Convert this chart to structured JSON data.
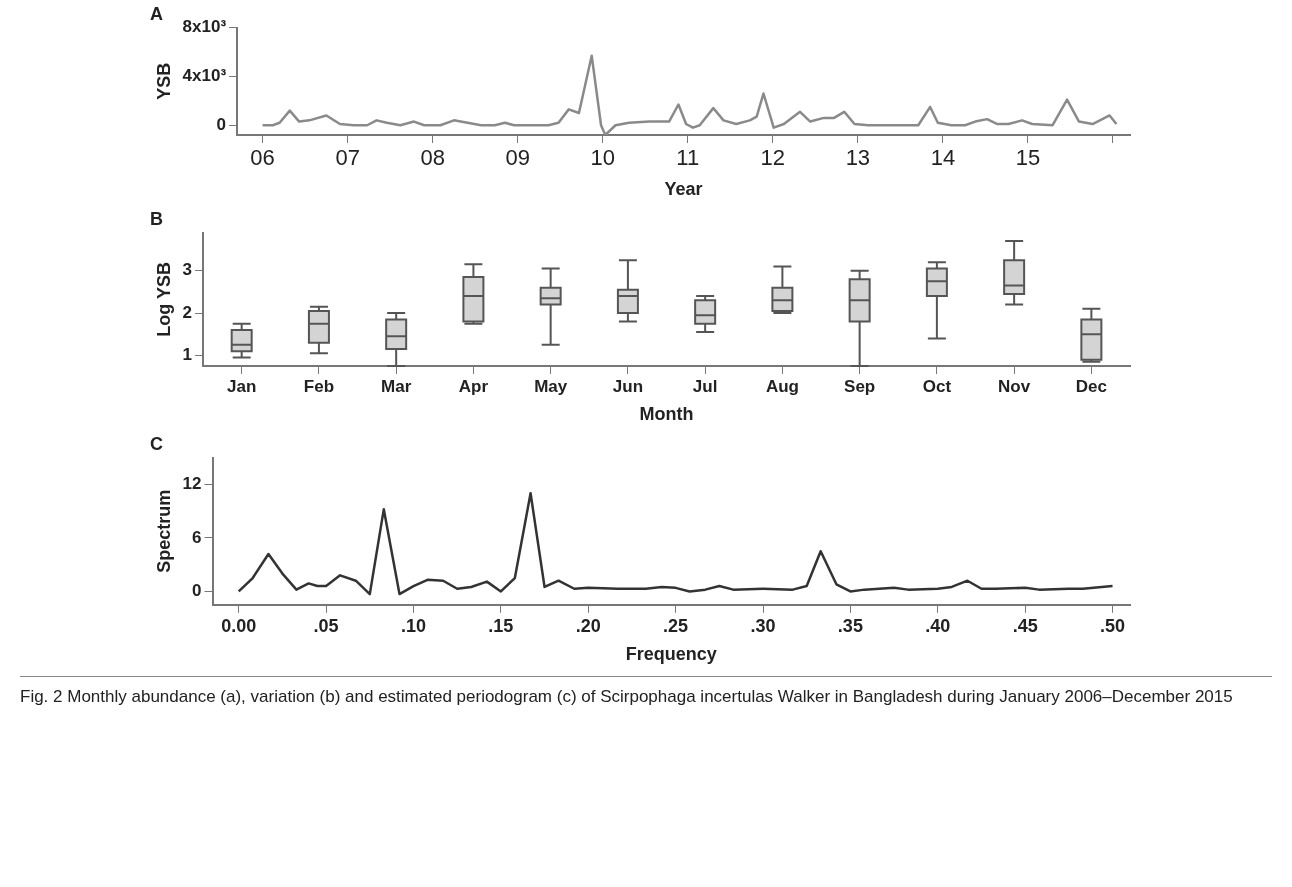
{
  "chart_data": [
    {
      "type": "line",
      "title": "A",
      "xlabel": "Year",
      "ylabel": "YSB",
      "x": [
        6.0,
        6.12,
        6.2,
        6.32,
        6.43,
        6.55,
        6.75,
        6.91,
        7.07,
        7.23,
        7.34,
        7.46,
        7.62,
        7.78,
        7.9,
        8.09,
        8.25,
        8.41,
        8.57,
        8.73,
        8.85,
        8.96,
        9.2,
        9.36,
        9.48,
        9.6,
        9.72,
        9.87,
        9.98,
        10.03,
        10.15,
        10.31,
        10.55,
        10.78,
        10.89,
        10.98,
        11.06,
        11.14,
        11.3,
        11.42,
        11.57,
        11.73,
        11.81,
        11.89,
        12.01,
        12.13,
        12.32,
        12.44,
        12.6,
        12.72,
        12.84,
        12.96,
        13.12,
        13.31,
        13.55,
        13.71,
        13.85,
        13.94,
        14.1,
        14.26,
        14.38,
        14.52,
        14.64,
        14.77,
        14.93,
        15.05,
        15.29,
        15.46,
        15.6,
        15.76,
        15.96,
        16.04
      ],
      "series": [
        {
          "color": "#8a8a8a",
          "values": [
            0,
            0,
            200,
            1200,
            300,
            400,
            800,
            100,
            0,
            0,
            400,
            200,
            0,
            300,
            0,
            0,
            400,
            200,
            0,
            0,
            200,
            0,
            0,
            0,
            200,
            1300,
            1000,
            5700,
            0,
            -800,
            0,
            200,
            300,
            300,
            1700,
            100,
            -200,
            0,
            1400,
            400,
            100,
            400,
            700,
            2600,
            -200,
            100,
            1100,
            300,
            600,
            600,
            1100,
            100,
            0,
            0,
            0,
            0,
            1500,
            200,
            0,
            0,
            300,
            500,
            100,
            100,
            400,
            100,
            0,
            2100,
            300,
            100,
            800,
            100
          ]
        }
      ],
      "xlim": [
        5.7,
        16.2
      ],
      "xticks": [
        {
          "value": 6,
          "label": "06"
        },
        {
          "value": 7,
          "label": "07"
        },
        {
          "value": 8,
          "label": "08"
        },
        {
          "value": 9,
          "label": "09"
        },
        {
          "value": 10,
          "label": "10"
        },
        {
          "value": 11,
          "label": "11"
        },
        {
          "value": 12,
          "label": "12"
        },
        {
          "value": 13,
          "label": "13"
        },
        {
          "value": 14,
          "label": "14"
        },
        {
          "value": 15,
          "label": "15"
        },
        {
          "value": 16,
          "label": null
        }
      ],
      "ylim": [
        -800,
        8000
      ],
      "yticks": [
        0,
        {
          "value": 4000,
          "label": "4x10³"
        },
        {
          "value": 8000,
          "label": "8x10³"
        }
      ]
    },
    {
      "type": "box",
      "title": "B",
      "xlabel": "Month",
      "ylabel": "Log YSB",
      "categories": [
        "Jan",
        "Feb",
        "Mar",
        "Apr",
        "May",
        "Jun",
        "Jul",
        "Aug",
        "Sep",
        "Oct",
        "Nov",
        "Dec"
      ],
      "color": "#d4d4d4",
      "boxes": [
        {
          "low": 0.95,
          "q1": 1.1,
          "median": 1.25,
          "q3": 1.6,
          "high": 1.75
        },
        {
          "low": 1.05,
          "q1": 1.3,
          "median": 1.75,
          "q3": 2.05,
          "high": 2.15
        },
        {
          "low": 0.75,
          "q1": 1.15,
          "median": 1.45,
          "q3": 1.85,
          "high": 2.0
        },
        {
          "low": 1.75,
          "q1": 1.8,
          "median": 2.4,
          "q3": 2.85,
          "high": 3.15
        },
        {
          "low": 1.25,
          "q1": 2.2,
          "median": 2.35,
          "q3": 2.6,
          "high": 3.05
        },
        {
          "low": 1.8,
          "q1": 2.0,
          "median": 2.4,
          "q3": 2.55,
          "high": 3.25
        },
        {
          "low": 1.55,
          "q1": 1.75,
          "median": 1.95,
          "q3": 2.3,
          "high": 2.4
        },
        {
          "low": 2.0,
          "q1": 2.05,
          "median": 2.3,
          "q3": 2.6,
          "high": 3.1
        },
        {
          "low": 0.75,
          "q1": 1.8,
          "median": 2.3,
          "q3": 2.8,
          "high": 3.0
        },
        {
          "low": 1.4,
          "q1": 2.4,
          "median": 2.75,
          "q3": 3.05,
          "high": 3.2
        },
        {
          "low": 2.2,
          "q1": 2.45,
          "median": 2.65,
          "q3": 3.25,
          "high": 3.7
        },
        {
          "low": 0.85,
          "q1": 0.9,
          "median": 1.5,
          "q3": 1.85,
          "high": 2.1
        }
      ],
      "ylim": [
        0.75,
        3.9
      ],
      "yticks": [
        1,
        2,
        3
      ]
    },
    {
      "type": "line",
      "title": "C",
      "xlabel": "Frequency",
      "ylabel": "Spectrum",
      "x": [
        0,
        0.008,
        0.017,
        0.025,
        0.033,
        0.04,
        0.045,
        0.05,
        0.058,
        0.067,
        0.075,
        0.083,
        0.092,
        0.1,
        0.108,
        0.117,
        0.125,
        0.133,
        0.142,
        0.15,
        0.158,
        0.167,
        0.175,
        0.183,
        0.192,
        0.2,
        0.217,
        0.233,
        0.242,
        0.25,
        0.258,
        0.267,
        0.275,
        0.283,
        0.3,
        0.317,
        0.325,
        0.333,
        0.342,
        0.35,
        0.358,
        0.375,
        0.383,
        0.4,
        0.408,
        0.417,
        0.425,
        0.433,
        0.45,
        0.458,
        0.475,
        0.483,
        0.5
      ],
      "series": [
        {
          "color": "#333333",
          "values": [
            0,
            1.5,
            4.2,
            2.0,
            0.2,
            0.9,
            0.6,
            0.6,
            1.8,
            1.2,
            -0.3,
            9.2,
            -0.3,
            0.6,
            1.3,
            1.2,
            0.3,
            0.5,
            1.1,
            0,
            1.5,
            11,
            0.5,
            1.2,
            0.3,
            0.4,
            0.3,
            0.3,
            0.5,
            0.4,
            0,
            0.2,
            0.6,
            0.2,
            0.3,
            0.2,
            0.6,
            4.5,
            0.8,
            0,
            0.2,
            0.4,
            0.2,
            0.3,
            0.5,
            1.2,
            0.3,
            0.3,
            0.4,
            0.2,
            0.3,
            0.3,
            0.6
          ]
        }
      ],
      "xlim": [
        -0.015,
        0.51
      ],
      "xticks": [
        {
          "value": 0,
          "label": "0.00"
        },
        {
          "value": 0.05,
          "label": ".05"
        },
        {
          "value": 0.1,
          "label": ".10"
        },
        {
          "value": 0.15,
          "label": ".15"
        },
        {
          "value": 0.2,
          "label": ".20"
        },
        {
          "value": 0.25,
          "label": ".25"
        },
        {
          "value": 0.3,
          "label": ".30"
        },
        {
          "value": 0.35,
          "label": ".35"
        },
        {
          "value": 0.4,
          "label": ".40"
        },
        {
          "value": 0.45,
          "label": ".45"
        },
        {
          "value": 0.5,
          "label": ".50"
        }
      ],
      "ylim": [
        -1.5,
        15
      ],
      "yticks": [
        0,
        6,
        12
      ],
      "annotations": [
        "Fig. 2 Monthly abundance (a), variation (b) and estimated periodogram (c) of Scirpophaga incertulas Walker in Bangladesh during January 2006–December 2015"
      ]
    }
  ]
}
